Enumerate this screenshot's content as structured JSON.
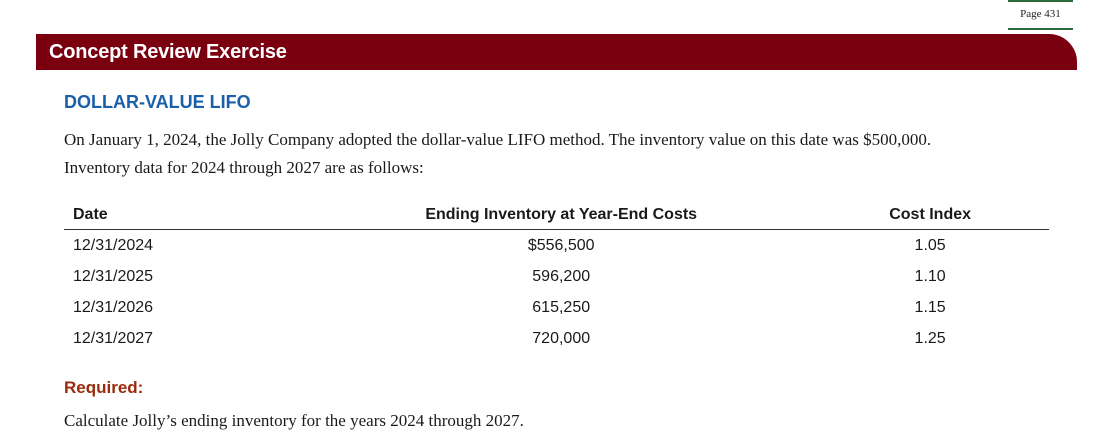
{
  "page_marker": "Page 431",
  "banner_title": "Concept Review Exercise",
  "section_title": "DOLLAR-VALUE LIFO",
  "intro": {
    "line1": "On January 1, 2024, the Jolly Company adopted the dollar-value LIFO method. The inventory value on this date was $500,000.",
    "line2": "Inventory data for 2024 through 2027 are as follows:"
  },
  "table": {
    "headers": {
      "date": "Date",
      "inventory": "Ending Inventory at Year-End Costs",
      "index": "Cost Index"
    },
    "rows": [
      {
        "date": "12/31/2024",
        "inventory": "$556,500",
        "index": "1.05"
      },
      {
        "date": "12/31/2025",
        "inventory": "596,200",
        "index": "1.10"
      },
      {
        "date": "12/31/2026",
        "inventory": "615,250",
        "index": "1.15"
      },
      {
        "date": "12/31/2027",
        "inventory": "720,000",
        "index": "1.25"
      }
    ]
  },
  "required": {
    "label": "Required:",
    "text": "Calculate Jolly’s ending inventory for the years 2024 through 2027."
  },
  "colors": {
    "banner": "#7a0010",
    "section_title": "#1a5fa8",
    "required_label": "#9b2b0c",
    "page_marker_rule": "#2e6b3a"
  }
}
